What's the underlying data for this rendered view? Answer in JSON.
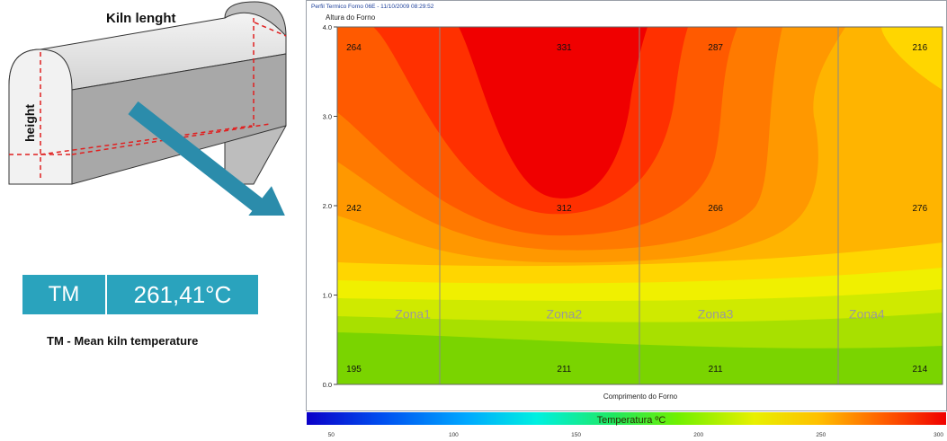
{
  "kiln": {
    "length_label": "Kiln lenght",
    "height_label": "height"
  },
  "mean_temp": {
    "label": "TM",
    "value": "261,41°C",
    "caption": "TM - Mean kiln temperature"
  },
  "colors": {
    "tm_box": "#2aa3bd",
    "arrow": "#2b8cab"
  },
  "chart_data": {
    "type": "heatmap",
    "window_title": "Perfil Termico Forno 06E - 11/10/2009 08:29:52",
    "ylabel": "Altura do Forno",
    "xlabel": "Comprimento do Forno",
    "ylim": [
      0,
      4
    ],
    "y_ticks": [
      "0.0",
      "1.0",
      "2.0",
      "3.0",
      "4.0"
    ],
    "zones": [
      "Zona1",
      "Zona2",
      "Zona3",
      "Zona4"
    ],
    "readings": [
      {
        "zone": 1,
        "level": "top",
        "value": "264"
      },
      {
        "zone": 2,
        "level": "top",
        "value": "331"
      },
      {
        "zone": 3,
        "level": "top",
        "value": "287"
      },
      {
        "zone": 4,
        "level": "top",
        "value": "216"
      },
      {
        "zone": 1,
        "level": "middle",
        "value": "242"
      },
      {
        "zone": 2,
        "level": "middle",
        "value": "312"
      },
      {
        "zone": 3,
        "level": "middle",
        "value": "266"
      },
      {
        "zone": 4,
        "level": "middle",
        "value": "276"
      },
      {
        "zone": 1,
        "level": "bottom",
        "value": "195"
      },
      {
        "zone": 2,
        "level": "bottom",
        "value": "211"
      },
      {
        "zone": 3,
        "level": "bottom",
        "value": "211"
      },
      {
        "zone": 4,
        "level": "bottom",
        "value": "214"
      }
    ],
    "colorbar": {
      "label": "Temperatura ºC",
      "range": [
        40,
        300
      ],
      "ticks": [
        "50",
        "100",
        "150",
        "200",
        "250",
        "300"
      ]
    },
    "grid": false
  }
}
